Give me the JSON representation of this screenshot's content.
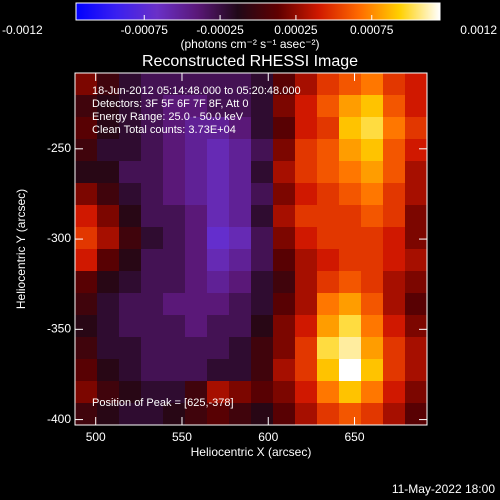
{
  "chart_data": {
    "type": "image",
    "title": "Reconstructed RHESSI Image",
    "xlabel": "Heliocentric X (arcsec)",
    "ylabel": "Heliocentric Y (arcsec)",
    "colorbar_label": "(photons cm⁻² s⁻¹ asec⁻²)",
    "annotations": [
      "18-Jun-2012 05:14:48.000 to 05:20:48.000",
      "Detectors: 3F 5F 6F 7F 8F, Att 0",
      "Energy Range: 25.0 - 50.0 keV",
      "Clean    Total counts: 3.73E+04"
    ],
    "peak_note": "Position of Peak = [625,-378]",
    "footer": "11-May-2022 18:00",
    "xlim": [
      488,
      692
    ],
    "ylim": [
      -403,
      -208
    ],
    "xticks": [
      500,
      550,
      600,
      650
    ],
    "yticks": [
      -250,
      -300,
      -350,
      -400
    ],
    "clim": [
      -0.0012,
      0.0012
    ],
    "cticks": [
      -0.0012,
      -0.00075,
      -0.00025,
      0.00025,
      0.00075,
      0.0012
    ],
    "colormap": [
      "#0000ff",
      "#3a20f0",
      "#6a30c8",
      "#5a1878",
      "#200818",
      "#600000",
      "#d01800",
      "#ff6a00",
      "#ffd000",
      "#ffffff"
    ],
    "z": [
      [
        0.0002,
        0,
        -0.0002,
        -0.0003,
        -0.0003,
        -0.0003,
        -0.0003,
        -0.0003,
        -0.0002,
        0.0001,
        0.0003,
        0.0005,
        0.0006,
        0.0007,
        0.0005,
        0.0004
      ],
      [
        0,
        -0.0001,
        -0.0002,
        -0.0003,
        -0.0004,
        -0.0004,
        -0.0003,
        -0.0003,
        -0.0002,
        0.0002,
        0.0004,
        0.0006,
        0.0008,
        0.0009,
        0.0006,
        0.0004
      ],
      [
        0.0001,
        -0.0001,
        -0.0002,
        -0.0003,
        -0.0004,
        -0.0005,
        -0.0005,
        -0.0004,
        -0.0002,
        0.0001,
        0.0004,
        0.0005,
        0.0009,
        0.001,
        0.0007,
        0.0005
      ],
      [
        0,
        -0.0002,
        -0.0002,
        -0.0003,
        -0.0004,
        -0.0005,
        -0.0006,
        -0.0005,
        -0.0003,
        0.0002,
        0.0005,
        0.0006,
        0.0008,
        0.0009,
        0.0006,
        0.0004
      ],
      [
        -0.0001,
        -0.0001,
        -0.0003,
        -0.0003,
        -0.0004,
        -0.0005,
        -0.0006,
        -0.0005,
        -0.0002,
        0.0003,
        0.0005,
        0.0006,
        0.0007,
        0.0008,
        0.0006,
        0.0003
      ],
      [
        0.0002,
        0,
        -0.0002,
        -0.0003,
        -0.0004,
        -0.0005,
        -0.0006,
        -0.0005,
        -0.0003,
        0.0002,
        0.0004,
        0.0005,
        0.0006,
        0.0007,
        0.0005,
        0.0003
      ],
      [
        0.0004,
        0.0002,
        -0.0001,
        -0.0003,
        -0.0003,
        -0.0004,
        -0.0006,
        -0.0005,
        -0.0002,
        0.0003,
        0.0005,
        0.0005,
        0.0005,
        0.0006,
        0.0005,
        0.0002
      ],
      [
        0.0005,
        0.0003,
        0,
        -0.0002,
        -0.0003,
        -0.0004,
        -0.0007,
        -0.0006,
        -0.0003,
        0.0002,
        0.0004,
        0.0005,
        0.0005,
        0.0005,
        0.0004,
        0.0002
      ],
      [
        0.0004,
        0.0001,
        -0.0001,
        -0.0003,
        -0.0003,
        -0.0004,
        -0.0006,
        -0.0005,
        -0.0003,
        0.0001,
        0.0003,
        0.0004,
        0.0005,
        0.0005,
        0.0004,
        0.0003
      ],
      [
        0.0001,
        -0.0001,
        -0.0002,
        -0.0003,
        -0.0003,
        -0.0004,
        -0.0005,
        -0.0004,
        -0.0002,
        0,
        0.0003,
        0.0005,
        0.0006,
        0.0005,
        0.0003,
        0.0002
      ],
      [
        0,
        -0.0002,
        -0.0003,
        -0.0003,
        -0.0004,
        -0.0004,
        -0.0004,
        -0.0003,
        -0.0002,
        0.0001,
        0.0003,
        0.0007,
        0.0008,
        0.0006,
        0.0003,
        0.0001
      ],
      [
        -0.0001,
        -0.0002,
        -0.0003,
        -0.0003,
        -0.0003,
        -0.0004,
        -0.0003,
        -0.0003,
        -0.0001,
        0.0002,
        0.0004,
        0.0008,
        0.001,
        0.0007,
        0.0004,
        0.0002
      ],
      [
        0,
        -0.0002,
        -0.0002,
        -0.0003,
        -0.0003,
        -0.0003,
        -0.0003,
        -0.0002,
        0,
        0.0002,
        0.0005,
        0.001,
        0.0011,
        0.0008,
        0.0005,
        0.0003
      ],
      [
        0.0001,
        -0.0001,
        -0.0002,
        -0.0003,
        -0.0003,
        -0.0003,
        -0.0002,
        -0.0002,
        0,
        0.0003,
        0.0005,
        0.0009,
        0.0012,
        0.0009,
        0.0005,
        0.0003
      ],
      [
        0.0002,
        0,
        -0.0001,
        -0.0002,
        -0.0002,
        0,
        0.0003,
        0.0002,
        0.0001,
        0.0002,
        0.0004,
        0.0007,
        0.0009,
        0.0007,
        0.0004,
        0.0002
      ],
      [
        0,
        -0.0001,
        -0.0002,
        -0.0002,
        -0.0001,
        0,
        0.0001,
        0,
        -0.0001,
        0.0001,
        0.0003,
        0.0005,
        0.0006,
        0.0005,
        0.0003,
        0.0001
      ]
    ]
  }
}
